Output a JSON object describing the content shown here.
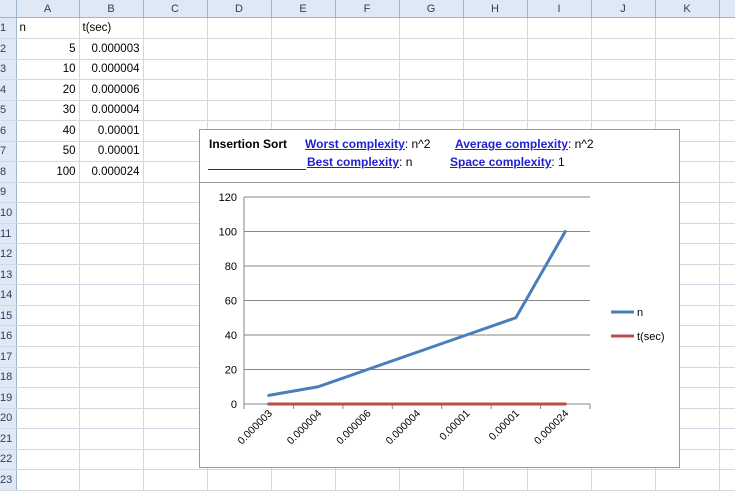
{
  "sheet": {
    "columns": [
      "A",
      "B",
      "C",
      "D",
      "E",
      "F",
      "G",
      "H",
      "I",
      "J",
      "K"
    ],
    "row_numbers": [
      "1",
      "2",
      "3",
      "4",
      "5",
      "6",
      "7",
      "8",
      "9",
      "10",
      "11",
      "12",
      "13",
      "14",
      "15",
      "16",
      "17",
      "18",
      "19",
      "20",
      "21",
      "22",
      "23"
    ],
    "header": {
      "a": "n",
      "b": "t(sec)"
    },
    "rows": [
      {
        "n": "5",
        "t": "0.000003"
      },
      {
        "n": "10",
        "t": "0.000004"
      },
      {
        "n": "20",
        "t": "0.000006"
      },
      {
        "n": "30",
        "t": "0.000004"
      },
      {
        "n": "40",
        "t": "0.00001"
      },
      {
        "n": "50",
        "t": "0.00001"
      },
      {
        "n": "100",
        "t": "0.000024"
      }
    ]
  },
  "infobox": {
    "title": "Insertion Sort",
    "worst_label": "Worst complexity",
    "worst_value": ": n^2",
    "average_label": "Average complexity",
    "average_value": ": n^2",
    "best_label": "Best complexity",
    "best_value": ": n",
    "space_label": "Space complexity",
    "space_value": ": 1"
  },
  "colors": {
    "series_n": "#4a7ebb",
    "series_t": "#be4b48",
    "header_bg": "#dfe9f5",
    "link": "#1f1fcf"
  },
  "chart_data": {
    "type": "line",
    "categories": [
      "0.000003",
      "0.000004",
      "0.000006",
      "0.000004",
      "0.00001",
      "0.00001",
      "0.000024"
    ],
    "series": [
      {
        "name": "n",
        "values": [
          5,
          10,
          20,
          30,
          40,
          50,
          100
        ]
      },
      {
        "name": "t(sec)",
        "values": [
          3e-06,
          4e-06,
          6e-06,
          4e-06,
          1e-05,
          1e-05,
          2.4e-05
        ]
      }
    ],
    "ylim": [
      0,
      120
    ],
    "yticks": [
      "0",
      "20",
      "40",
      "60",
      "80",
      "100",
      "120"
    ],
    "grid": true,
    "legend": "right"
  }
}
